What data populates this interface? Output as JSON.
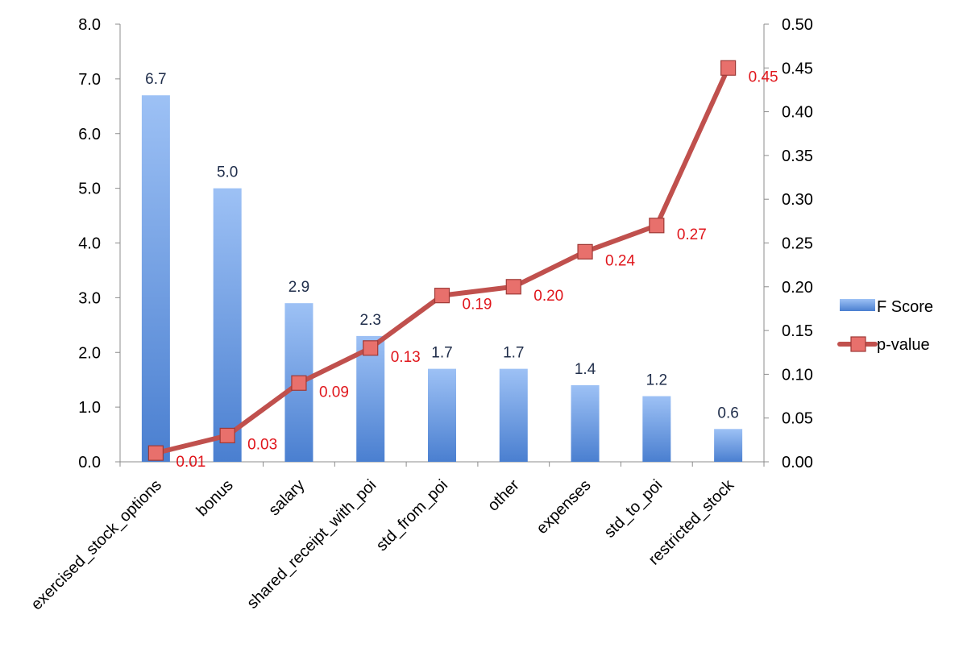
{
  "chart_data": {
    "type": "bar",
    "categories": [
      "exercised_stock_options",
      "bonus",
      "salary",
      "shared_receipt_with_poi",
      "std_from_poi",
      "other",
      "expenses",
      "std_to_poi",
      "restricted_stock"
    ],
    "series": [
      {
        "name": "F Score",
        "type": "bar",
        "axis": "left",
        "values": [
          6.7,
          5.0,
          2.9,
          2.3,
          1.7,
          1.7,
          1.4,
          1.2,
          0.6
        ],
        "labels": [
          "6.7",
          "5.0",
          "2.9",
          "2.3",
          "1.7",
          "1.7",
          "1.4",
          "1.2",
          "0.6"
        ],
        "color": "#4a7fd0",
        "color_light": "#9dc1f5"
      },
      {
        "name": "p-value",
        "type": "line",
        "axis": "right",
        "values": [
          0.01,
          0.03,
          0.09,
          0.13,
          0.19,
          0.2,
          0.24,
          0.27,
          0.45
        ],
        "labels": [
          "0.01",
          "0.03",
          "0.09",
          "0.13",
          "0.19",
          "0.20",
          "0.24",
          "0.27",
          "0.45"
        ],
        "color": "#c0504d",
        "marker_color": "#e8706c",
        "label_color": "#e0161c"
      }
    ],
    "y_left": {
      "lim": [
        0,
        8
      ],
      "ticks": [
        "0.0",
        "1.0",
        "2.0",
        "3.0",
        "4.0",
        "5.0",
        "6.0",
        "7.0",
        "8.0"
      ]
    },
    "y_right": {
      "lim": [
        0,
        0.5
      ],
      "ticks": [
        "0.00",
        "0.05",
        "0.10",
        "0.15",
        "0.20",
        "0.25",
        "0.30",
        "0.35",
        "0.40",
        "0.45",
        "0.50"
      ]
    },
    "grid": false,
    "legend": "right"
  }
}
